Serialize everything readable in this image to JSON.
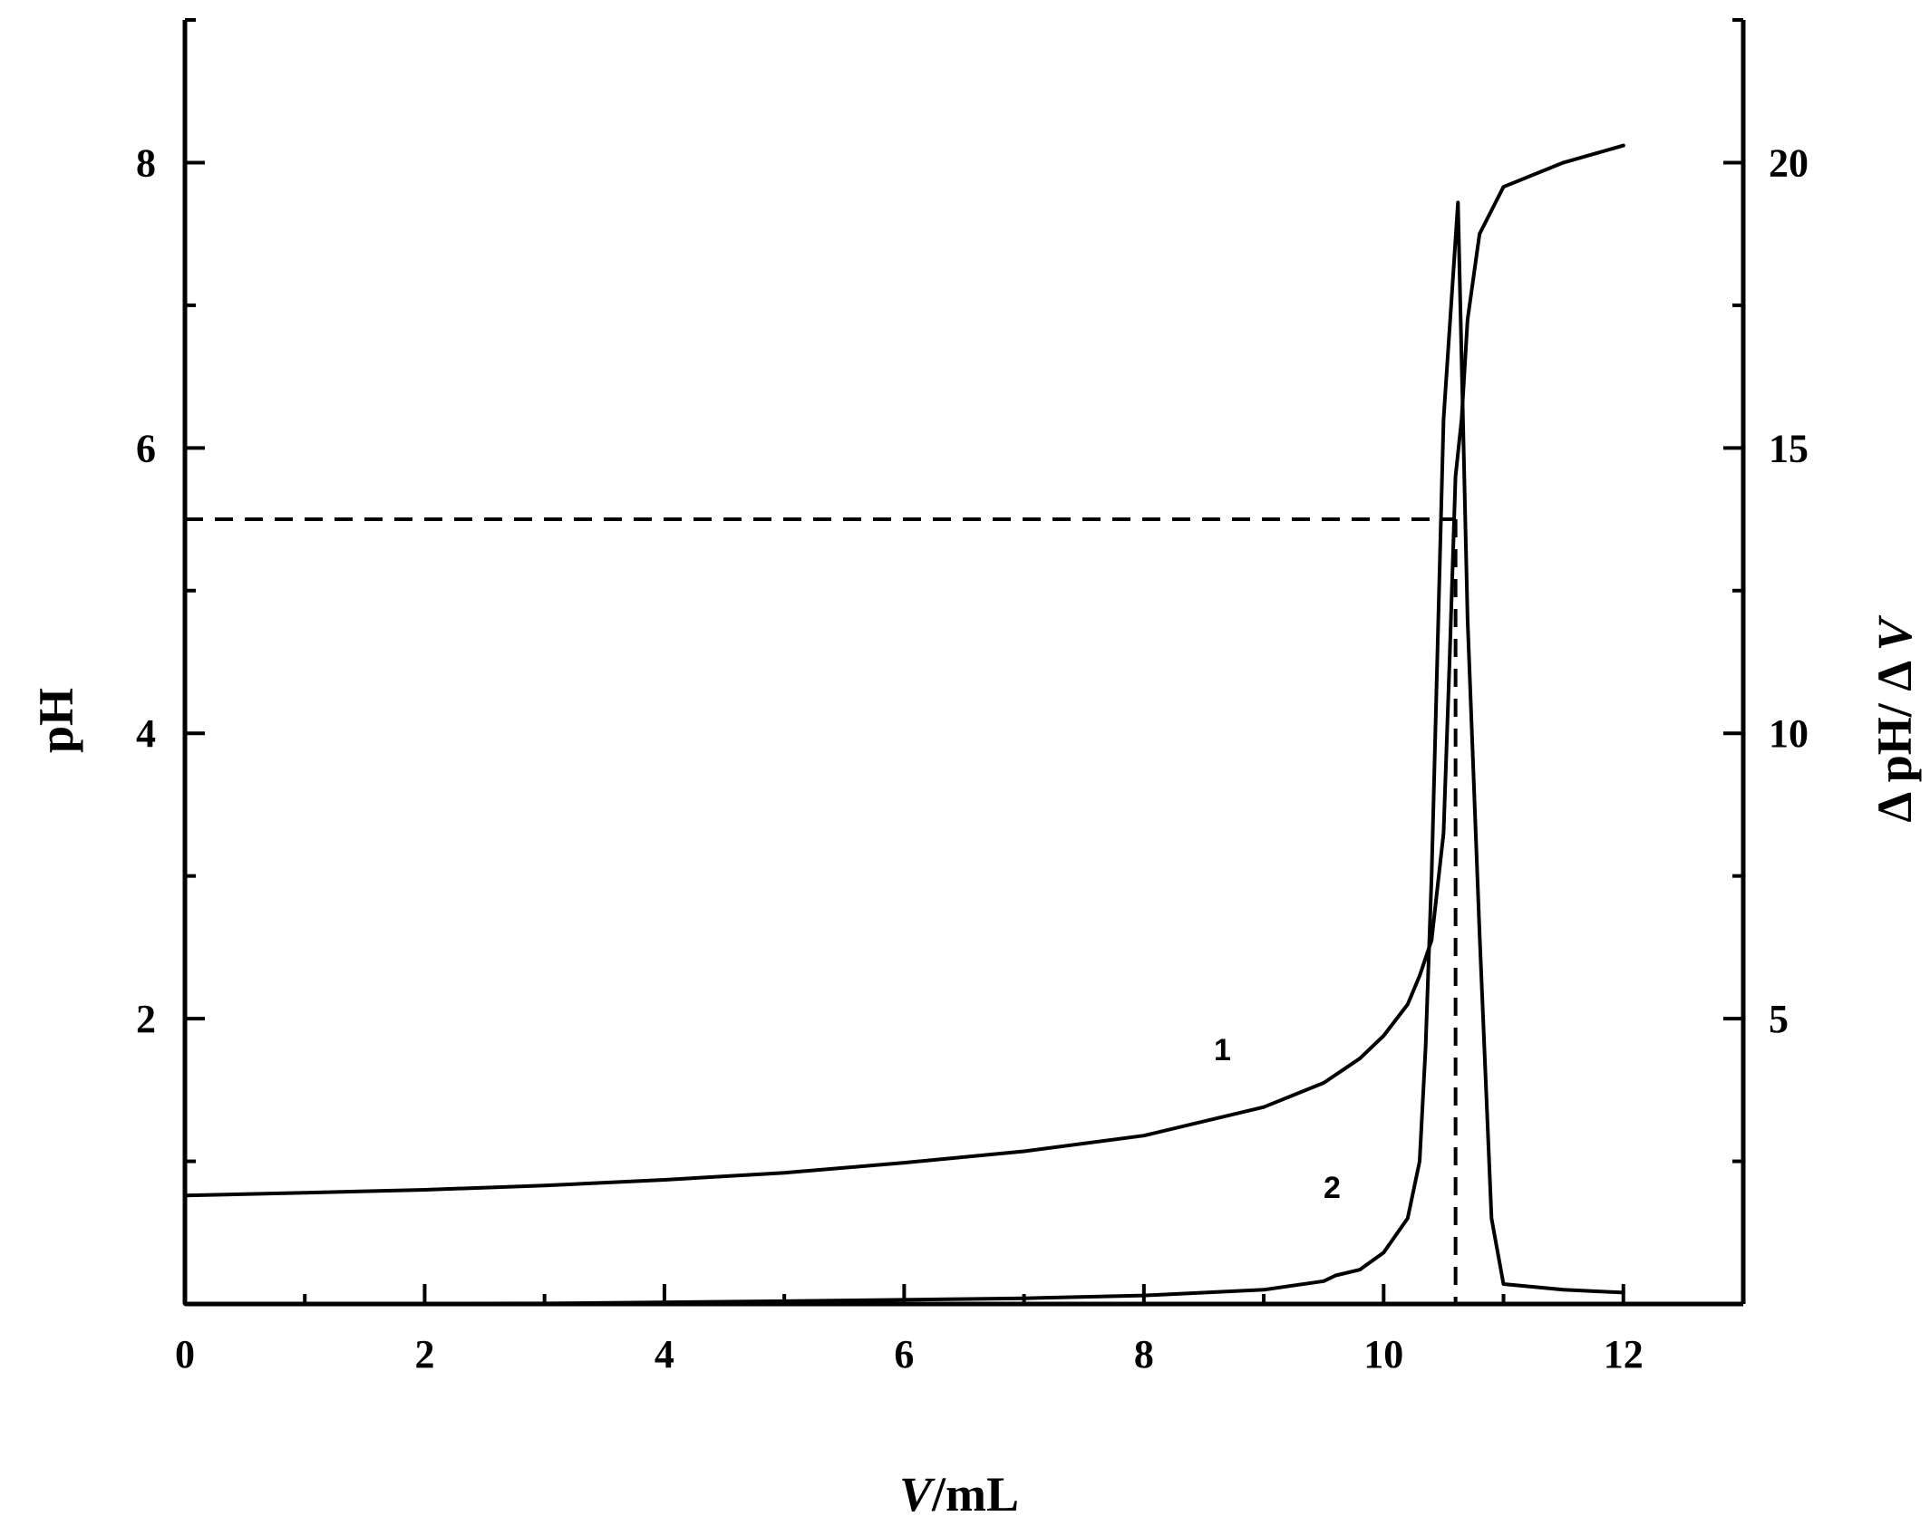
{
  "chart_data": {
    "type": "line",
    "x_axis": {
      "label_italic": "V",
      "label_rest": "/mL",
      "range": [
        0,
        13
      ],
      "major_ticks": [
        0,
        2,
        4,
        6,
        8,
        10,
        12
      ],
      "minor_ticks": [
        1,
        3,
        5,
        7,
        9,
        11,
        13
      ],
      "tick_labels": [
        "0",
        "2",
        "4",
        "6",
        "8",
        "10",
        "12"
      ]
    },
    "y_left_axis": {
      "label": "pH",
      "range": [
        0,
        9
      ],
      "major_ticks": [
        2,
        4,
        6,
        8
      ],
      "minor_ticks": [
        1,
        3,
        5,
        7,
        9
      ],
      "tick_labels": [
        "2",
        "4",
        "6",
        "8"
      ]
    },
    "y_right_axis": {
      "label_prefix": "Δ pH/ Δ ",
      "label_italic": "V",
      "range": [
        0,
        22.5
      ],
      "major_ticks": [
        5,
        10,
        15,
        20
      ],
      "minor_ticks": [
        2.5,
        7.5,
        12.5,
        17.5,
        22.5
      ],
      "tick_labels": [
        "5",
        "10",
        "15",
        "20"
      ]
    },
    "series": [
      {
        "label": "1",
        "axis": "left",
        "x": [
          0,
          1,
          2,
          3,
          4,
          5,
          6,
          7,
          8,
          9,
          9.5,
          9.8,
          10,
          10.2,
          10.3,
          10.4,
          10.5,
          10.55,
          10.6,
          10.65,
          10.7,
          10.8,
          11,
          11.5,
          12
        ],
        "y": [
          0.76,
          0.78,
          0.8,
          0.83,
          0.87,
          0.92,
          0.99,
          1.07,
          1.18,
          1.38,
          1.55,
          1.72,
          1.88,
          2.1,
          2.3,
          2.55,
          3.3,
          4.5,
          5.8,
          6.2,
          6.9,
          7.5,
          7.83,
          8.0,
          8.12
        ]
      },
      {
        "label": "2",
        "axis": "right",
        "x": [
          0,
          3,
          5,
          7,
          8,
          9,
          9.5,
          9.6,
          9.8,
          10,
          10.1,
          10.2,
          10.3,
          10.35,
          10.4,
          10.5,
          10.62,
          10.7,
          10.8,
          10.9,
          11,
          11.5,
          12
        ],
        "y": [
          0,
          0.01,
          0.05,
          0.1,
          0.15,
          0.25,
          0.4,
          0.5,
          0.6,
          0.9,
          1.2,
          1.5,
          2.5,
          4.5,
          7.5,
          15.5,
          19.3,
          12.0,
          6.5,
          1.5,
          0.35,
          0.25,
          0.2
        ]
      }
    ],
    "annotations": {
      "equivalence_pH": 5.5,
      "equivalence_volume": 10.6
    },
    "grid": false,
    "legend": "none"
  }
}
